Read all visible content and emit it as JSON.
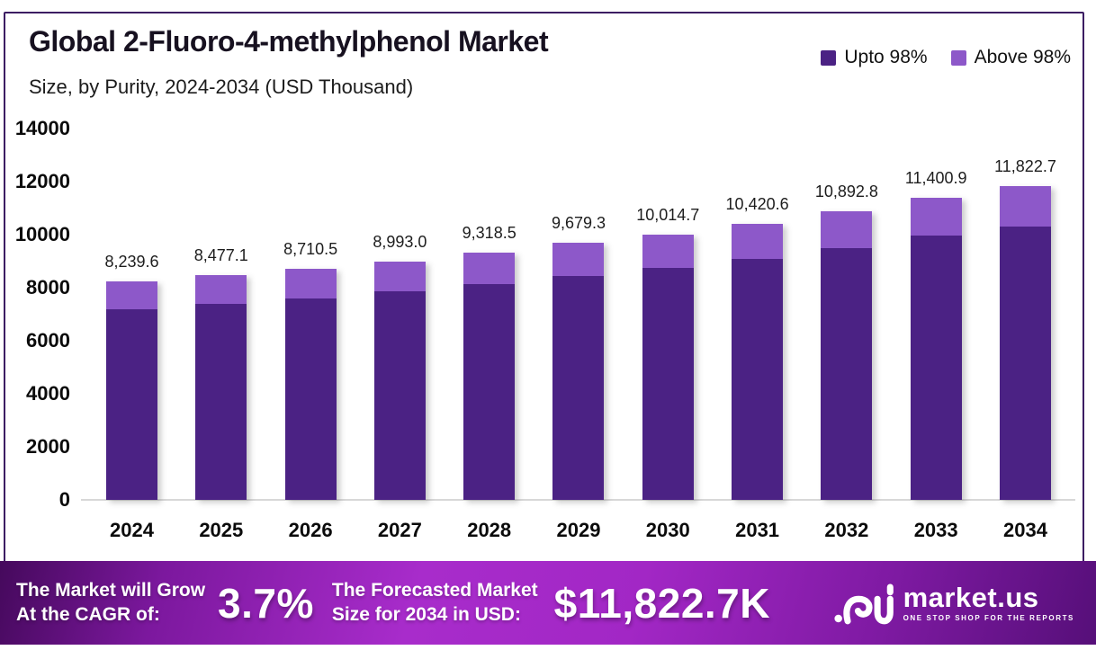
{
  "header": {
    "title": "Global 2-Fluoro-4-methylphenol Market",
    "subtitle": "Size, by Purity, 2024-2034 (USD Thousand)"
  },
  "legend": [
    {
      "label": "Upto 98%",
      "color": "#4b2284"
    },
    {
      "label": "Above 98%",
      "color": "#8d58c9"
    }
  ],
  "chart_data": {
    "type": "bar",
    "stacked": true,
    "title": "Global 2-Fluoro-4-methylphenol Market Size, by Purity, 2024-2034 (USD Thousand)",
    "categories": [
      "2024",
      "2025",
      "2026",
      "2027",
      "2028",
      "2029",
      "2030",
      "2031",
      "2032",
      "2033",
      "2034"
    ],
    "series": [
      {
        "name": "Upto 98%",
        "color": "#4b2284",
        "values": [
          7193.2,
          7400.5,
          7604.3,
          7850.9,
          8135.1,
          8450.0,
          8742.8,
          9097.2,
          9509.4,
          9953.0,
          10321.2
        ]
      },
      {
        "name": "Above 98%",
        "color": "#8d58c9",
        "values": [
          1046.4,
          1076.6,
          1106.2,
          1142.1,
          1183.4,
          1229.3,
          1271.9,
          1323.4,
          1383.4,
          1447.9,
          1501.5
        ]
      }
    ],
    "totals": [
      8239.6,
      8477.1,
      8710.5,
      8993.0,
      9318.5,
      9679.3,
      10014.7,
      10420.6,
      10892.8,
      11400.9,
      11822.7
    ],
    "total_labels": [
      "8,239.6",
      "8,477.1",
      "8,710.5",
      "8,993.0",
      "9,318.5",
      "9,679.3",
      "10,014.7",
      "10,420.6",
      "10,892.8",
      "11,400.9",
      "11,822.7"
    ],
    "xlabel": "",
    "ylabel": "",
    "ylim": [
      0,
      14000
    ],
    "yticks": [
      14000,
      12000,
      10000,
      8000,
      6000,
      4000,
      2000,
      0
    ],
    "grid": false,
    "legend_position": "top-right"
  },
  "banner": {
    "cagr_label_line1": "The Market will Grow",
    "cagr_label_line2": "At the CAGR of:",
    "cagr_value": "3.7%",
    "forecast_label_line1": "The Forecasted Market",
    "forecast_label_line2": "Size for 2034 in USD:",
    "forecast_value": "$11,822.7K",
    "brand": "market.us",
    "brand_tagline": "ONE STOP SHOP FOR THE REPORTS"
  },
  "colors": {
    "upto_98": "#4b2284",
    "above_98": "#8d58c9",
    "card_border": "#3c1d63",
    "banner_gradient_mid": "#a82ccb",
    "banner_gradient_edge": "#45095c",
    "baseline": "#d8d8d8"
  }
}
